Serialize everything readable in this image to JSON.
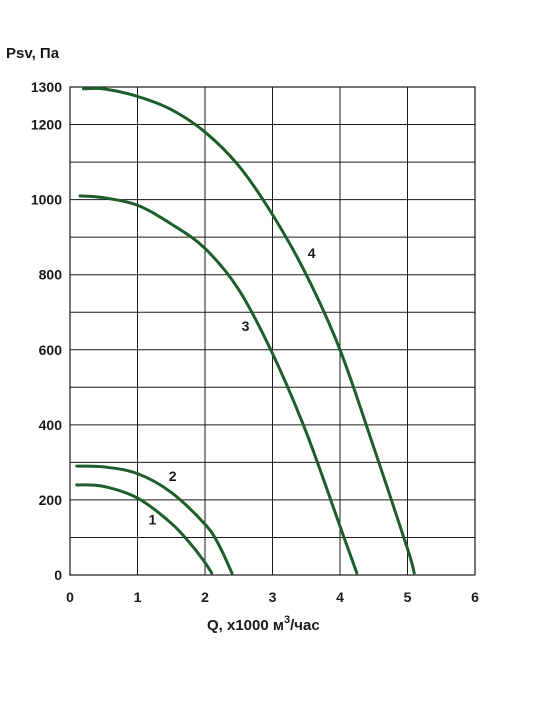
{
  "chart_data": {
    "type": "line",
    "ylabel": "Psv, Па",
    "xlabel_prefix": "Q, x1000 м",
    "xlabel_sup": "3",
    "xlabel_suffix": "/час",
    "xlim": [
      0,
      6
    ],
    "ylim": [
      0,
      1300
    ],
    "x_ticks": [
      0,
      1,
      2,
      3,
      4,
      5,
      6
    ],
    "y_ticks": [
      0,
      200,
      400,
      600,
      800,
      1000,
      1200,
      1300
    ],
    "y_grid": [
      0,
      100,
      200,
      300,
      400,
      500,
      600,
      700,
      800,
      900,
      1000,
      1100,
      1200,
      1300
    ],
    "x_grid": [
      0,
      1,
      2,
      3,
      4,
      5,
      6
    ],
    "grid": true,
    "series_color": "#1e5e2a",
    "series": [
      {
        "name": "1",
        "label_at": [
          1.22,
          135
        ],
        "x": [
          0.1,
          0.5,
          1.0,
          1.5,
          1.8,
          2.0,
          2.1
        ],
        "y": [
          240,
          236,
          205,
          138,
          80,
          33,
          5
        ]
      },
      {
        "name": "2",
        "label_at": [
          1.52,
          250
        ],
        "x": [
          0.1,
          0.5,
          1.0,
          1.5,
          2.0,
          2.2,
          2.4
        ],
        "y": [
          290,
          288,
          270,
          220,
          135,
          82,
          5
        ]
      },
      {
        "name": "3",
        "label_at": [
          2.6,
          650
        ],
        "x": [
          0.15,
          0.5,
          1.0,
          1.5,
          2.0,
          2.5,
          3.0,
          3.5,
          4.0,
          4.25
        ],
        "y": [
          1010,
          1005,
          985,
          935,
          870,
          760,
          590,
          380,
          130,
          5
        ]
      },
      {
        "name": "4",
        "label_at": [
          3.58,
          845
        ],
        "x": [
          0.2,
          0.5,
          1.0,
          1.5,
          2.0,
          2.5,
          3.0,
          3.5,
          4.0,
          4.5,
          5.0,
          5.1
        ],
        "y": [
          1295,
          1295,
          1275,
          1240,
          1180,
          1090,
          960,
          800,
          600,
          340,
          70,
          5
        ]
      }
    ]
  }
}
